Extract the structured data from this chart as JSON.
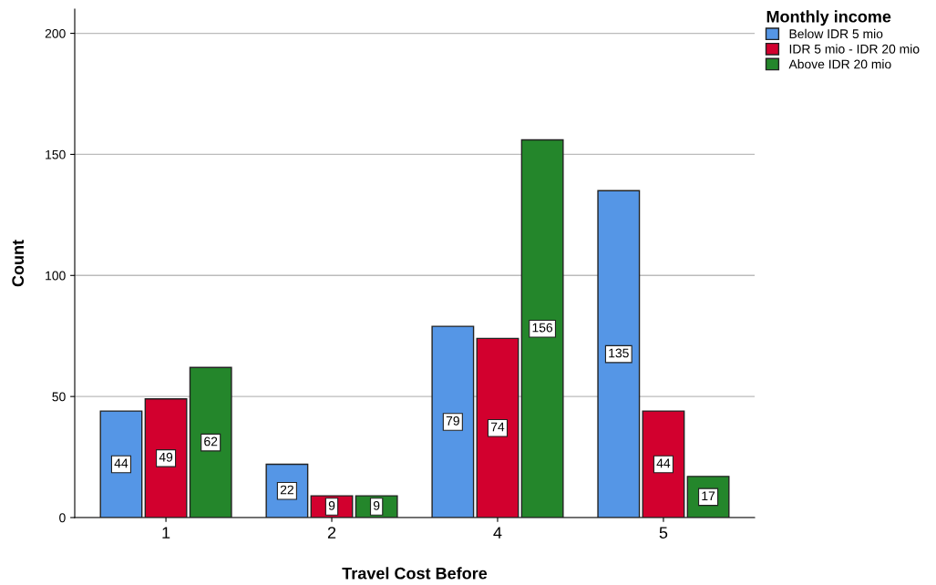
{
  "chart_data": {
    "type": "bar",
    "xlabel": "Travel Cost Before",
    "ylabel": "Count",
    "legend_title": "Monthly income",
    "categories": [
      "1",
      "2",
      "4",
      "5"
    ],
    "series": [
      {
        "name": "Below IDR 5 mio",
        "color": "#5596e6",
        "values": [
          44,
          22,
          79,
          135
        ]
      },
      {
        "name": "IDR 5 mio - IDR 20 mio",
        "color": "#d2002e",
        "values": [
          49,
          9,
          74,
          44
        ]
      },
      {
        "name": "Above IDR 20 mio",
        "color": "#24862b",
        "values": [
          62,
          9,
          156,
          17
        ]
      }
    ],
    "ylim": [
      0,
      210
    ],
    "yticks": [
      0,
      50,
      100,
      150,
      200
    ],
    "grid": "y",
    "legend": "top right",
    "data_labels": true
  }
}
